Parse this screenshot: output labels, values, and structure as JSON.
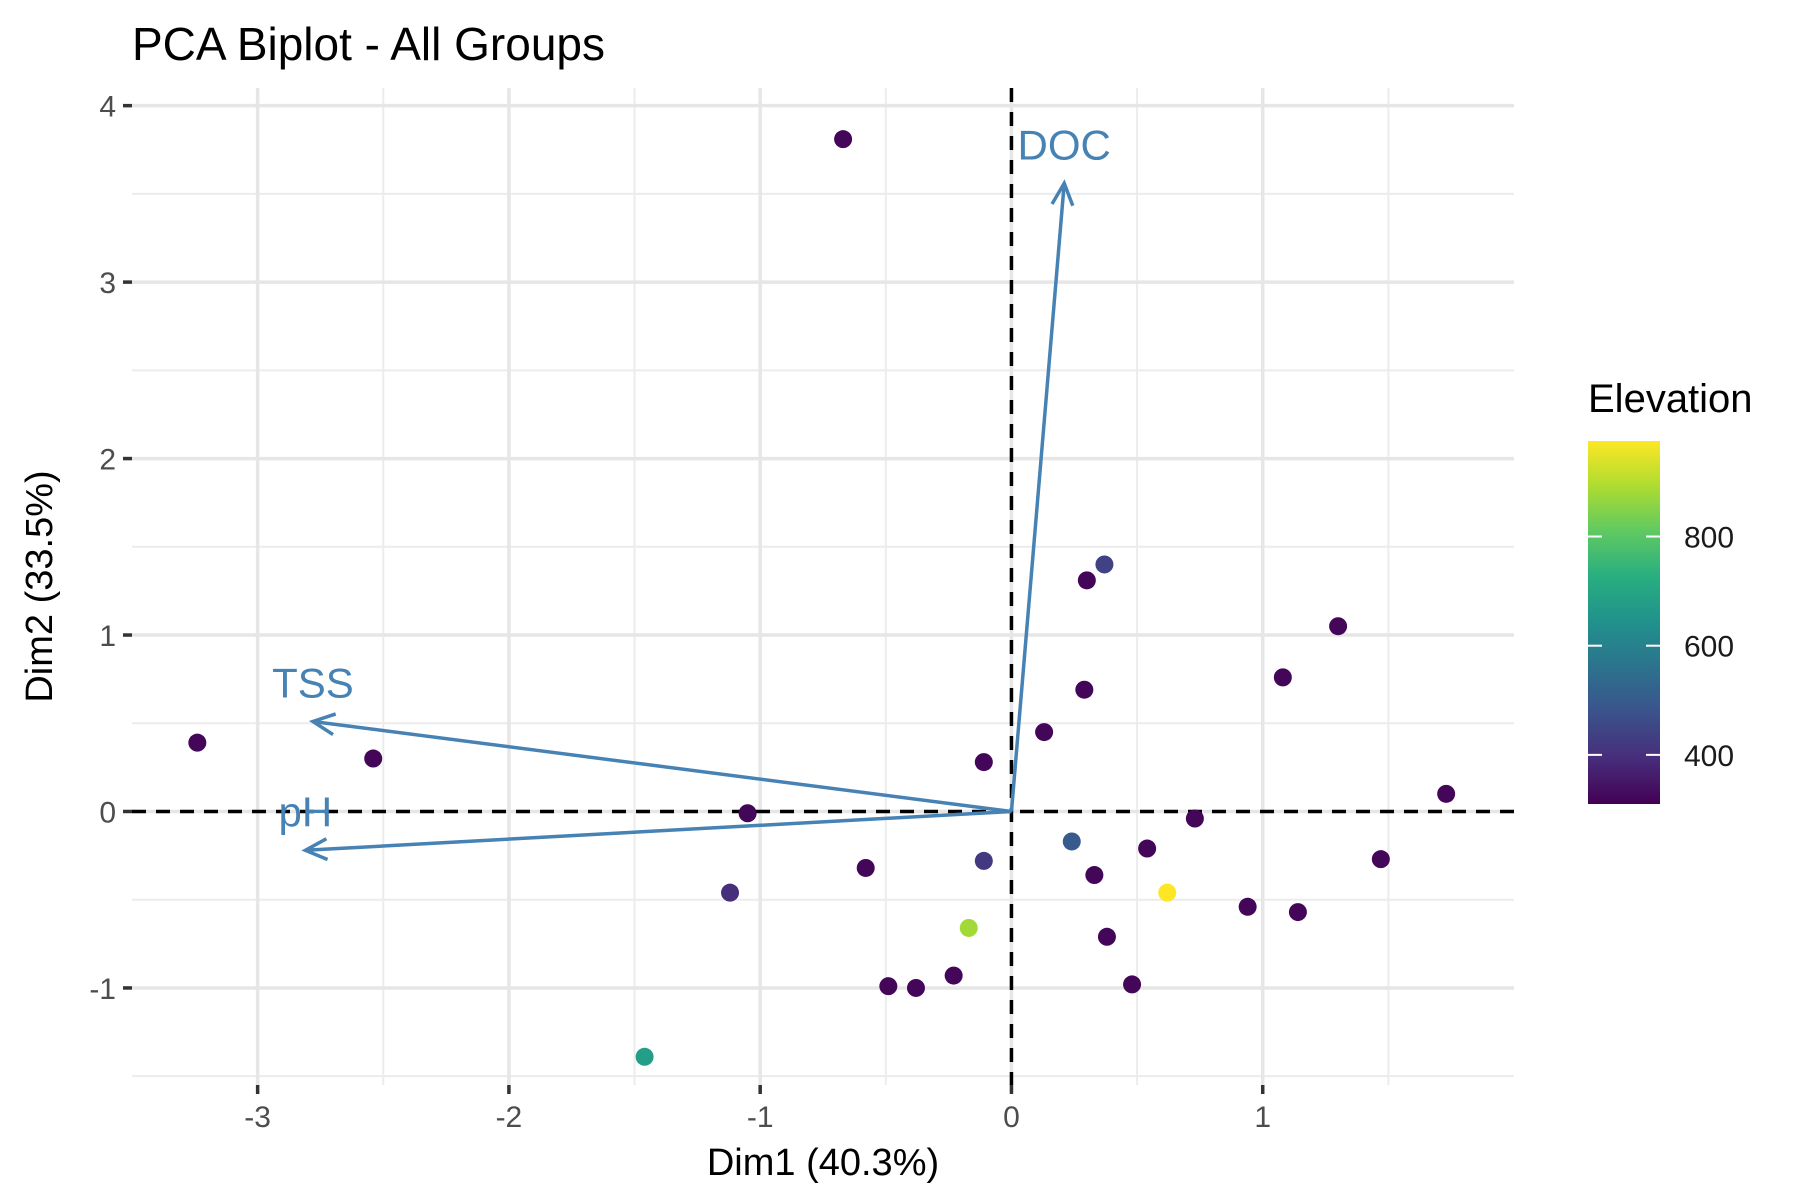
{
  "chart_data": {
    "type": "scatter",
    "title": "PCA Biplot - All Groups",
    "xlabel": "Dim1 (40.3%)",
    "ylabel": "Dim2 (33.5%)",
    "xlim": [
      -3.5,
      2.0
    ],
    "ylim": [
      -1.55,
      4.1
    ],
    "x_ticks": [
      -3,
      -2,
      -1,
      0,
      1
    ],
    "y_ticks": [
      -1,
      0,
      1,
      2,
      3,
      4
    ],
    "grid": true,
    "legend": {
      "title": "Elevation",
      "type": "colorbar",
      "placement": "right",
      "range": [
        310,
        975
      ],
      "ticks": [
        400,
        600,
        800
      ]
    },
    "arrow_color": "#4682b4",
    "arrows": [
      {
        "label": "DOC",
        "x": 0.21,
        "y": 3.56
      },
      {
        "label": "TSS",
        "x": -2.78,
        "y": 0.51
      },
      {
        "label": "pH",
        "x": -2.81,
        "y": -0.22
      }
    ],
    "points": [
      {
        "x": -0.67,
        "y": 3.81,
        "elevation": 320
      },
      {
        "x": -3.24,
        "y": 0.39,
        "elevation": 320
      },
      {
        "x": -2.54,
        "y": 0.3,
        "elevation": 320
      },
      {
        "x": -1.05,
        "y": -0.01,
        "elevation": 320
      },
      {
        "x": -1.12,
        "y": -0.46,
        "elevation": 400
      },
      {
        "x": -0.58,
        "y": -0.32,
        "elevation": 320
      },
      {
        "x": -1.46,
        "y": -1.39,
        "elevation": 680
      },
      {
        "x": -0.49,
        "y": -0.99,
        "elevation": 320
      },
      {
        "x": -0.38,
        "y": -1.0,
        "elevation": 320
      },
      {
        "x": -0.23,
        "y": -0.93,
        "elevation": 320
      },
      {
        "x": -0.17,
        "y": -0.66,
        "elevation": 880
      },
      {
        "x": -0.11,
        "y": -0.28,
        "elevation": 420
      },
      {
        "x": -0.11,
        "y": 0.28,
        "elevation": 320
      },
      {
        "x": 0.13,
        "y": 0.45,
        "elevation": 320
      },
      {
        "x": 0.29,
        "y": 0.69,
        "elevation": 320
      },
      {
        "x": 0.3,
        "y": 1.31,
        "elevation": 320
      },
      {
        "x": 0.37,
        "y": 1.4,
        "elevation": 440
      },
      {
        "x": 0.24,
        "y": -0.17,
        "elevation": 500
      },
      {
        "x": 0.33,
        "y": -0.36,
        "elevation": 320
      },
      {
        "x": 0.38,
        "y": -0.71,
        "elevation": 320
      },
      {
        "x": 0.48,
        "y": -0.98,
        "elevation": 320
      },
      {
        "x": 0.54,
        "y": -0.21,
        "elevation": 320
      },
      {
        "x": 0.62,
        "y": -0.46,
        "elevation": 975
      },
      {
        "x": 0.73,
        "y": -0.04,
        "elevation": 320
      },
      {
        "x": 0.94,
        "y": -0.54,
        "elevation": 320
      },
      {
        "x": 1.08,
        "y": 0.76,
        "elevation": 320
      },
      {
        "x": 1.14,
        "y": -0.57,
        "elevation": 320
      },
      {
        "x": 1.3,
        "y": 1.05,
        "elevation": 320
      },
      {
        "x": 1.47,
        "y": -0.27,
        "elevation": 320
      },
      {
        "x": 1.73,
        "y": 0.1,
        "elevation": 320
      }
    ]
  }
}
